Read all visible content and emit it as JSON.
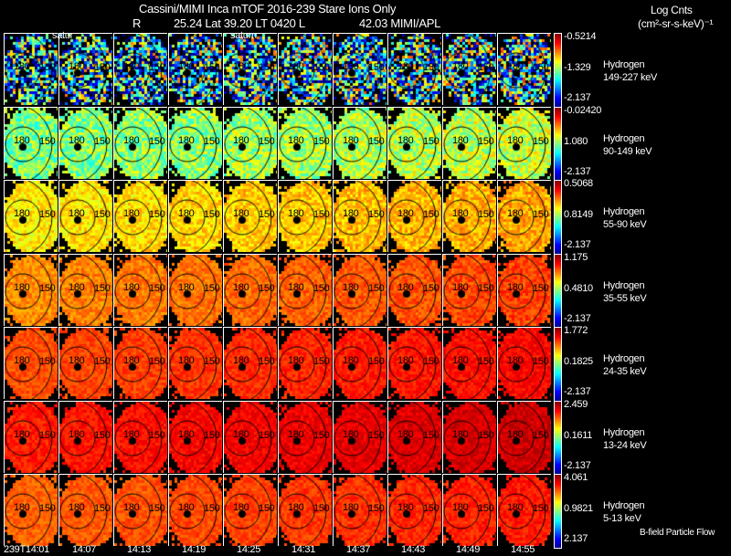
{
  "header": {
    "title": "Cassini/MIMI Inca mTOF  2016-239    Stare    Ions Only",
    "subtitle_r": "R",
    "subtitle": "25.24 Lat 39.20 LT 0420 L",
    "subtitle_val": "42.03  MIMI/APL",
    "units_title": "Log Cnts",
    "units": "(cm²-sr-s-keV)⁻¹",
    "overlay_labels": [
      "satur",
      "saturn"
    ]
  },
  "footer_note": "B-field Particle Flow",
  "chart_data": {
    "type": "heatmap",
    "title": "Cassini/MIMI Inca mTOF 2016-239 Stare Ions Only",
    "x_tick_labels": [
      "239T14:01",
      "14:07",
      "14:13",
      "14:19",
      "14:25",
      "14:31",
      "14:37",
      "14:43",
      "14:49",
      "14:55"
    ],
    "contour_labels": [
      "180",
      "150"
    ],
    "rows": [
      {
        "species": "Hydrogen",
        "energy": "149-227 keV",
        "cmax": "-0.5214",
        "cmid": "-1.329",
        "cmin": "-2.137",
        "intensity": 0.32,
        "spread": 0.22
      },
      {
        "species": "Hydrogen",
        "energy": "90-149 keV",
        "cmax": "-0.02420",
        "cmid": "1.080",
        "cmin": "-2.137",
        "intensity": 0.5,
        "spread": 0.12
      },
      {
        "species": "Hydrogen",
        "energy": "55-90 keV",
        "cmax": "0.5068",
        "cmid": "0.8149",
        "cmin": "-2.137",
        "intensity": 0.64,
        "spread": 0.07
      },
      {
        "species": "Hydrogen",
        "energy": "35-55 keV",
        "cmax": "1.175",
        "cmid": "0.4810",
        "cmin": "-2.137",
        "intensity": 0.74,
        "spread": 0.05
      },
      {
        "species": "Hydrogen",
        "energy": "24-35 keV",
        "cmax": "1.772",
        "cmid": "0.1825",
        "cmin": "-2.137",
        "intensity": 0.8,
        "spread": 0.04
      },
      {
        "species": "Hydrogen",
        "energy": "13-24 keV",
        "cmax": "2.459",
        "cmid": "0.1611",
        "cmin": "-2.137",
        "intensity": 0.85,
        "spread": 0.04
      },
      {
        "species": "Hydrogen",
        "energy": "5-13 keV",
        "cmax": "4.061",
        "cmid": "0.9821",
        "cmin": "2.137",
        "intensity": 0.78,
        "spread": 0.04
      }
    ]
  }
}
